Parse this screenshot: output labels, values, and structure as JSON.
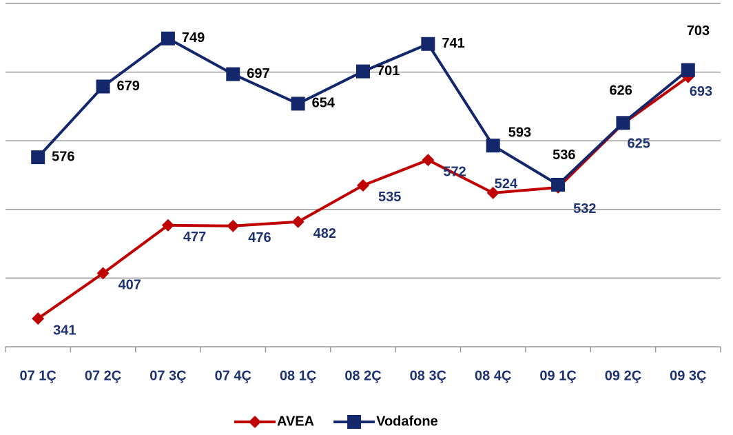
{
  "chart_data": {
    "type": "line",
    "categories": [
      "07 1Ç",
      "07 2Ç",
      "07 3Ç",
      "07 4Ç",
      "08 1Ç",
      "08 2Ç",
      "08 3Ç",
      "08 4Ç",
      "09 1Ç",
      "09 2Ç",
      "09 3Ç"
    ],
    "series": [
      {
        "name": "AVEA",
        "color": "#c00000",
        "label_color": "#1f3370",
        "values": [
          341,
          407,
          477,
          476,
          482,
          535,
          572,
          524,
          532,
          625,
          693
        ]
      },
      {
        "name": "Vodafone",
        "color": "#14276b",
        "label_color": "#000000",
        "values": [
          576,
          679,
          749,
          697,
          654,
          701,
          741,
          593,
          536,
          626,
          703
        ]
      }
    ],
    "ylim": [
      300,
      800
    ],
    "yticks": [
      300,
      400,
      500,
      600,
      700,
      800
    ],
    "grid": true,
    "legend": "bottom"
  }
}
